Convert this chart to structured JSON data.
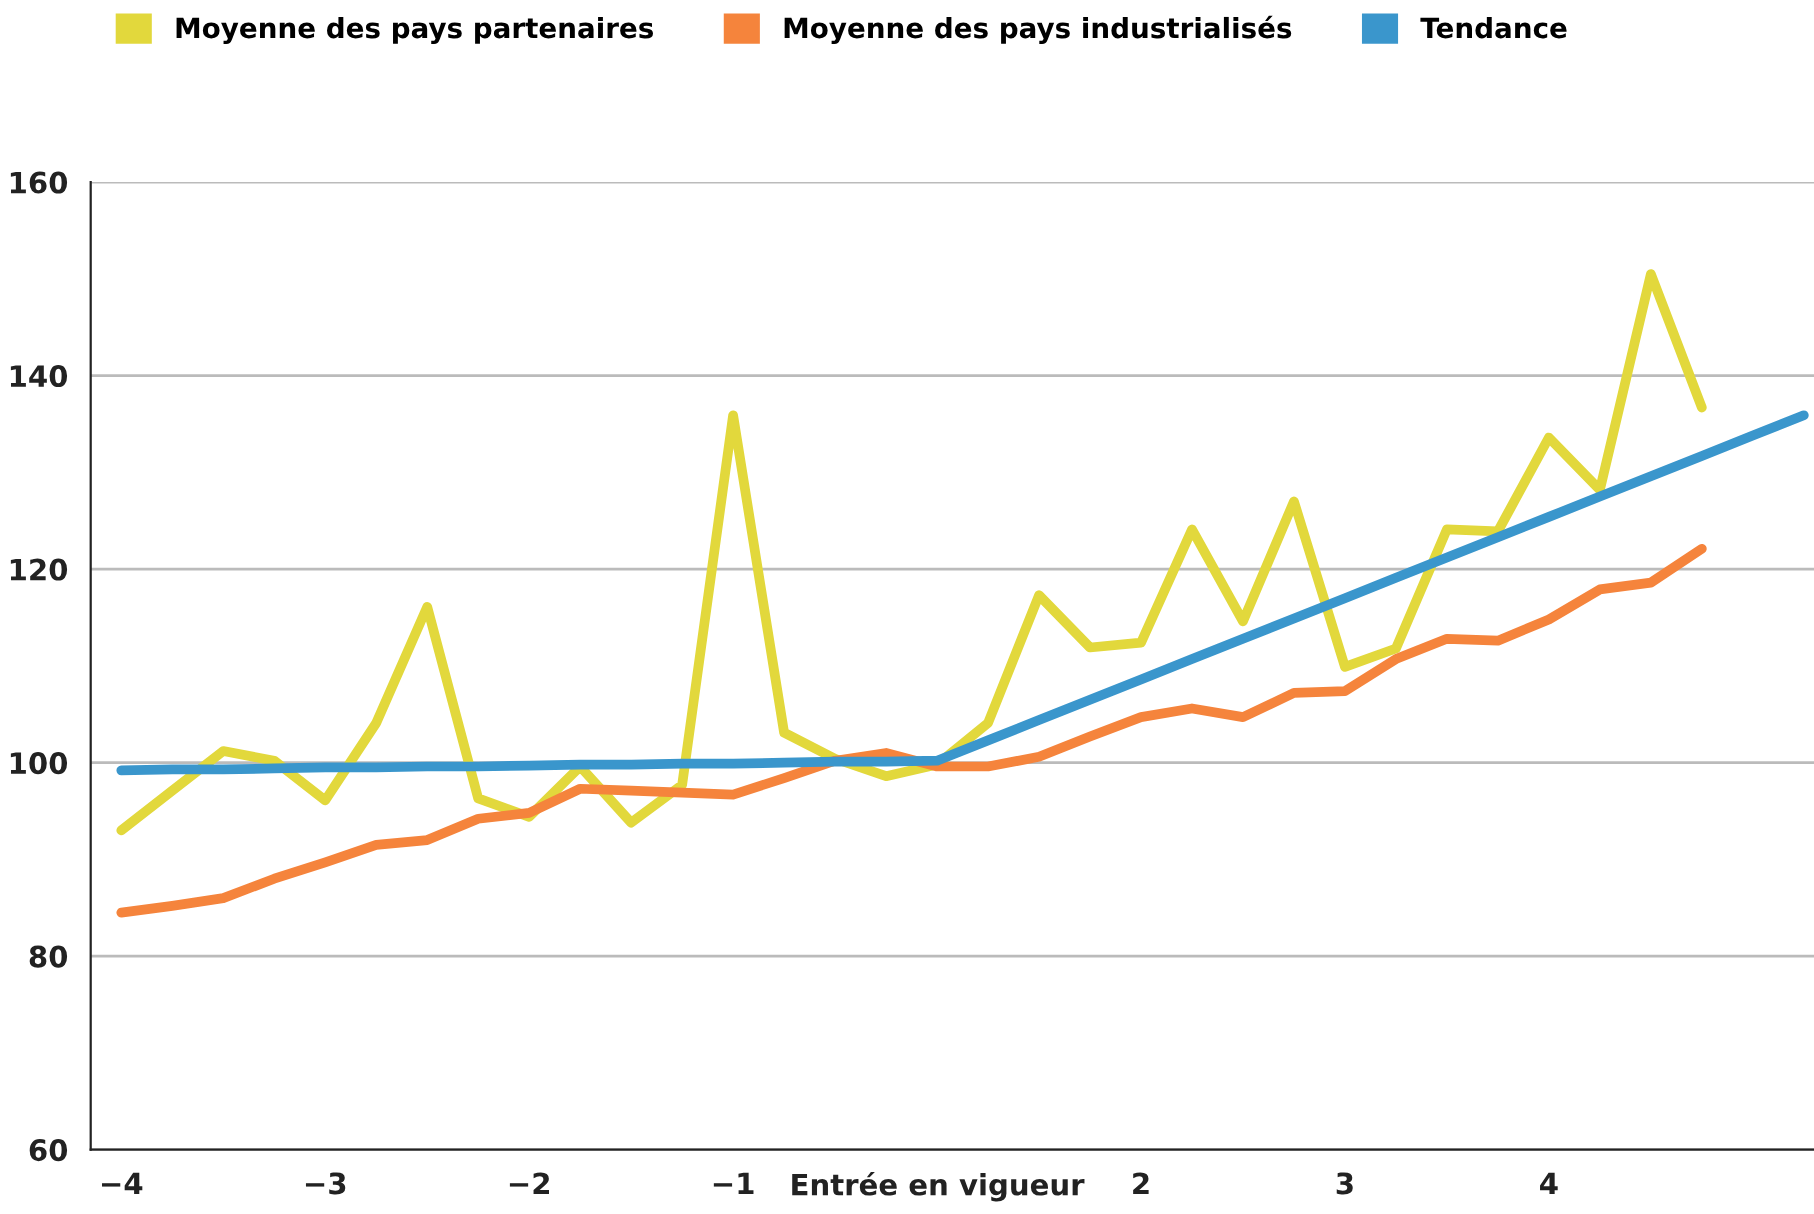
{
  "chart_data": {
    "type": "line",
    "categories": [
      "−4",
      null,
      null,
      null,
      "−3",
      null,
      null,
      null,
      "−2",
      null,
      null,
      null,
      "−1",
      null,
      null,
      null,
      "Entrée en vigueur",
      null,
      null,
      null,
      "2",
      null,
      null,
      null,
      "3",
      null,
      null,
      null,
      "4",
      null,
      null,
      null,
      null,
      null
    ],
    "series": [
      {
        "name": "Moyenne des pays partenaires",
        "color": "#e2d83c",
        "values": [
          93.0,
          97.1,
          101.2,
          100.2,
          96.1,
          104.1,
          116.1,
          96.3,
          94.4,
          99.6,
          93.8,
          97.7,
          135.9,
          103.1,
          100.4,
          98.6,
          99.8,
          104.1,
          117.3,
          111.9,
          112.4,
          124.1,
          114.6,
          127.0,
          109.9,
          111.8,
          124.1,
          123.9,
          133.6,
          128.2,
          150.5,
          136.7,
          null,
          null
        ]
      },
      {
        "name": "Moyenne des pays industrialisés",
        "color": "#f5843c",
        "values": [
          84.5,
          85.2,
          86.0,
          88.0,
          89.7,
          91.5,
          92.0,
          94.2,
          94.8,
          97.3,
          97.1,
          96.9,
          96.7,
          98.4,
          100.2,
          101.0,
          99.6,
          99.6,
          100.6,
          102.7,
          104.7,
          105.6,
          104.7,
          107.2,
          107.4,
          110.7,
          112.8,
          112.6,
          114.8,
          117.9,
          118.6,
          122.1,
          null,
          null
        ]
      },
      {
        "name": "Tendance",
        "color": "#3a96cc",
        "values": [
          99.2,
          99.3,
          99.3,
          99.4,
          99.5,
          99.5,
          99.6,
          99.6,
          99.7,
          99.8,
          99.8,
          99.9,
          99.9,
          100.0,
          100.1,
          100.1,
          100.2,
          102.3,
          104.4,
          106.5,
          108.6,
          110.7,
          112.8,
          114.9,
          117.0,
          119.1,
          121.2,
          123.3,
          125.4,
          127.5,
          129.6,
          131.7,
          133.8,
          135.9
        ]
      }
    ],
    "ylim": [
      60,
      160
    ],
    "yticks": [
      60,
      80,
      100,
      120,
      140,
      160
    ],
    "grid": "y",
    "legend": "top left",
    "marker": "none",
    "line_style": "solid"
  }
}
